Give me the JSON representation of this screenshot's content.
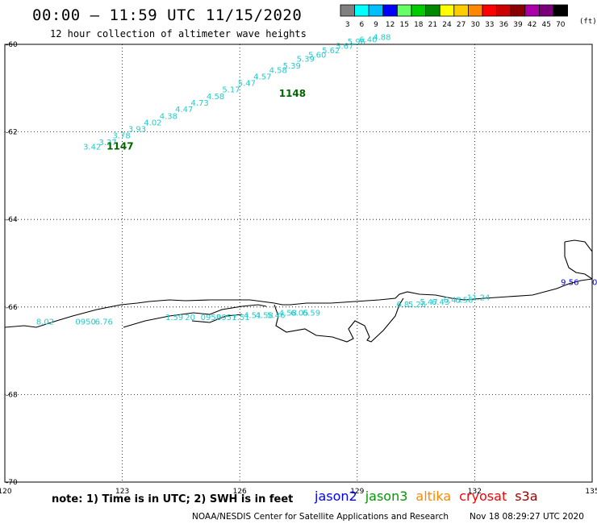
{
  "header": {
    "title": "00:00 – 11:59 UTC 11/15/2020",
    "subtitle": "12 hour collection of altimeter wave heights"
  },
  "legend": {
    "unit": "(ft)",
    "bins": [
      {
        "label": "3",
        "color": "#808080"
      },
      {
        "label": "6",
        "color": "#00ffff"
      },
      {
        "label": "9",
        "color": "#00bfff"
      },
      {
        "label": "12",
        "color": "#0000ff"
      },
      {
        "label": "15",
        "color": "#66ff66"
      },
      {
        "label": "18",
        "color": "#00cc00"
      },
      {
        "label": "21",
        "color": "#008800"
      },
      {
        "label": "24",
        "color": "#ffff00"
      },
      {
        "label": "27",
        "color": "#ffcc00"
      },
      {
        "label": "30",
        "color": "#ff8800"
      },
      {
        "label": "33",
        "color": "#ff0000"
      },
      {
        "label": "36",
        "color": "#cc0000"
      },
      {
        "label": "39",
        "color": "#880000"
      },
      {
        "label": "42",
        "color": "#aa00aa"
      },
      {
        "label": "45",
        "color": "#7a007a"
      },
      {
        "label": "70",
        "color": "#000000"
      }
    ]
  },
  "map": {
    "lon_range": [
      120,
      135
    ],
    "lat_range": [
      -70,
      -60
    ],
    "lon_ticks": [
      "120",
      "123",
      "126",
      "129",
      "132",
      "135"
    ],
    "lat_ticks": [
      "-60",
      "-62",
      "-64",
      "-66",
      "-68",
      "-70"
    ],
    "gridlines": true
  },
  "tracks": [
    {
      "name": "upper-track",
      "color": "#22cccc",
      "values": [
        "3.42",
        "3.27",
        "3.78",
        "3.93",
        "4.02",
        "4.38",
        "4.47",
        "4.73",
        "4.58",
        "5.17",
        "5.47",
        "4.57",
        "4.58",
        "5.39",
        "5.39",
        "5.60",
        "5.62",
        "5.67",
        "5.96",
        "6.40",
        "4.88"
      ],
      "points": [
        [
          122.0,
          -62.4
        ],
        [
          122.4,
          -62.3
        ],
        [
          122.75,
          -62.15
        ],
        [
          123.15,
          -62.0
        ],
        [
          123.55,
          -61.85
        ],
        [
          123.95,
          -61.7
        ],
        [
          124.35,
          -61.55
        ],
        [
          124.75,
          -61.4
        ],
        [
          125.15,
          -61.25
        ],
        [
          125.55,
          -61.1
        ],
        [
          125.95,
          -60.95
        ],
        [
          126.35,
          -60.8
        ],
        [
          126.75,
          -60.65
        ],
        [
          127.1,
          -60.55
        ],
        [
          127.45,
          -60.4
        ],
        [
          127.75,
          -60.3
        ],
        [
          128.1,
          -60.2
        ],
        [
          128.45,
          -60.1
        ],
        [
          128.75,
          -60.0
        ],
        [
          129.05,
          -59.95
        ],
        [
          129.4,
          -59.9
        ]
      ],
      "time_labels": [
        {
          "label": "1147",
          "lon": 122.6,
          "lat": -62.4,
          "color": "#006600"
        },
        {
          "label": "1148",
          "lon": 127.0,
          "lat": -61.2,
          "color": "#006600"
        }
      ]
    },
    {
      "name": "coastal-track",
      "color": "#22cccc",
      "values": [
        "8.02",
        "0950",
        "6.76",
        "1.59",
        "20",
        "0958",
        "0951",
        "7.51",
        "4.51",
        "4.58",
        "5.46",
        "4.58",
        "6.05",
        "6.59"
      ],
      "points": [
        [
          120.8,
          -66.4
        ],
        [
          121.8,
          -66.4
        ],
        [
          122.3,
          -66.4
        ],
        [
          124.1,
          -66.3
        ],
        [
          124.6,
          -66.3
        ],
        [
          125.0,
          -66.3
        ],
        [
          125.4,
          -66.3
        ],
        [
          125.8,
          -66.3
        ],
        [
          126.1,
          -66.25
        ],
        [
          126.4,
          -66.25
        ],
        [
          126.7,
          -66.25
        ],
        [
          127.0,
          -66.2
        ],
        [
          127.3,
          -66.2
        ],
        [
          127.6,
          -66.2
        ]
      ]
    },
    {
      "name": "east-track",
      "color": "#22cccc",
      "values": [
        "6.8",
        "5.26",
        "5.47",
        "6.43",
        "6.43",
        "6.56",
        "11.24"
      ],
      "points": [
        [
          130.0,
          -66.0
        ],
        [
          130.3,
          -66.0
        ],
        [
          130.6,
          -65.95
        ],
        [
          130.9,
          -65.95
        ],
        [
          131.2,
          -65.9
        ],
        [
          131.5,
          -65.9
        ],
        [
          131.8,
          -65.85
        ]
      ]
    },
    {
      "name": "far-east-track",
      "color": "#0000cc",
      "values": [
        "9.56",
        "0"
      ],
      "points": [
        [
          134.2,
          -65.5
        ],
        [
          135.0,
          -65.5
        ]
      ]
    }
  ],
  "footer": {
    "note": "note: 1) Time is in UTC; 2) SWH is in feet",
    "satellites": [
      {
        "name": "jason2",
        "color": "#0000ff"
      },
      {
        "name": "jason3",
        "color": "#009900"
      },
      {
        "name": "altika",
        "color": "#ff8800"
      },
      {
        "name": "cryosat",
        "color": "#ff0000"
      },
      {
        "name": "s3a",
        "color": "#990000"
      }
    ],
    "credit": "NOAA/NESDIS Center for Satellite Applications and Research",
    "timestamp": "Nov 18 08:29:27 UTC 2020"
  }
}
